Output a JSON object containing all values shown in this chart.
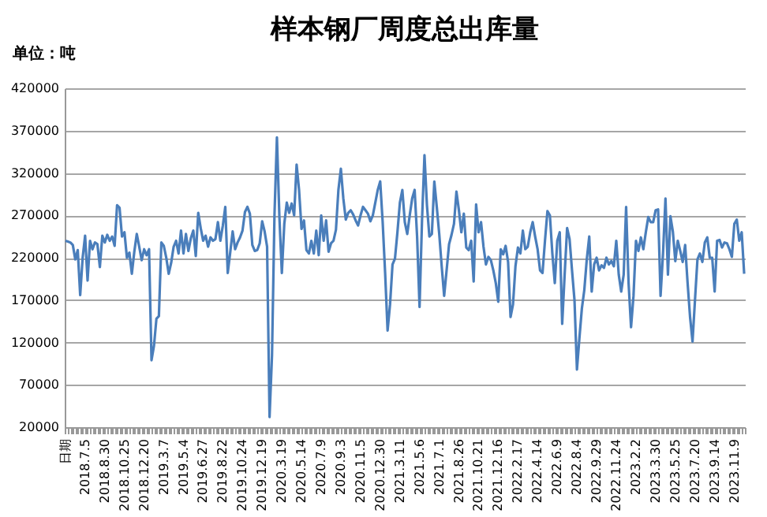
{
  "chart_data": {
    "type": "line",
    "title": "样本钢厂周度总出库量",
    "annotations": [
      "单位：吨"
    ],
    "categories": [
      "日期",
      null,
      null,
      null,
      null,
      null,
      null,
      null,
      "2018.7.5",
      null,
      null,
      null,
      null,
      null,
      null,
      null,
      "2018.8.30",
      null,
      null,
      null,
      null,
      null,
      null,
      null,
      "2018.10.25",
      null,
      null,
      null,
      null,
      null,
      null,
      null,
      "2018.12.20",
      null,
      null,
      null,
      null,
      null,
      null,
      null,
      "2019.3.7",
      null,
      null,
      null,
      null,
      null,
      null,
      null,
      "2019.5.4",
      null,
      null,
      null,
      null,
      null,
      null,
      null,
      "2019.6.27",
      null,
      null,
      null,
      null,
      null,
      null,
      null,
      "2019.8.22",
      null,
      null,
      null,
      null,
      null,
      null,
      null,
      "2019.10.24",
      null,
      null,
      null,
      null,
      null,
      null,
      null,
      "2019.12.19",
      null,
      null,
      null,
      null,
      null,
      null,
      null,
      "2020.3.19",
      null,
      null,
      null,
      null,
      null,
      null,
      null,
      "2020.5.14",
      null,
      null,
      null,
      null,
      null,
      null,
      null,
      "2020.7.9",
      null,
      null,
      null,
      null,
      null,
      null,
      null,
      "2020.9.3",
      null,
      null,
      null,
      null,
      null,
      null,
      null,
      "2020.11.5",
      null,
      null,
      null,
      null,
      null,
      null,
      null,
      "2020.12.30",
      null,
      null,
      null,
      null,
      null,
      null,
      null,
      "2021.3.11",
      null,
      null,
      null,
      null,
      null,
      null,
      null,
      "2021.5.6",
      null,
      null,
      null,
      null,
      null,
      null,
      null,
      "2021.7.1",
      null,
      null,
      null,
      null,
      null,
      null,
      null,
      "2021.8.26",
      null,
      null,
      null,
      null,
      null,
      null,
      null,
      "2021.10.21",
      null,
      null,
      null,
      null,
      null,
      null,
      null,
      "2021.12.16",
      null,
      null,
      null,
      null,
      null,
      null,
      null,
      "2022.2.17",
      null,
      null,
      null,
      null,
      null,
      null,
      null,
      "2022.4.14",
      null,
      null,
      null,
      null,
      null,
      null,
      null,
      "2022.6.9",
      null,
      null,
      null,
      null,
      null,
      null,
      null,
      "2022.8.4",
      null,
      null,
      null,
      null,
      null,
      null,
      null,
      "2022.9.29",
      null,
      null,
      null,
      null,
      null,
      null,
      null,
      "2022.11.24",
      null,
      null,
      null,
      null,
      null,
      null,
      null,
      "2023.2.2",
      null,
      null,
      null,
      null,
      null,
      null,
      null,
      "2023.3.30",
      null,
      null,
      null,
      null,
      null,
      null,
      null,
      "2023.5.25",
      null,
      null,
      null,
      null,
      null,
      null,
      null,
      "2023.7.20",
      null,
      null,
      null,
      null,
      null,
      null,
      null,
      "2023.9.14",
      null,
      null,
      null,
      null,
      null,
      null,
      null,
      "2023.11.9",
      null,
      null,
      null,
      null
    ],
    "values": [
      240000,
      239000,
      238000,
      235000,
      218000,
      229000,
      176000,
      220000,
      246000,
      193000,
      240000,
      230000,
      238000,
      236000,
      209000,
      246000,
      238000,
      247000,
      240000,
      245000,
      234000,
      282000,
      279000,
      245000,
      250000,
      220000,
      226000,
      201000,
      227000,
      248000,
      233000,
      217000,
      230000,
      223000,
      230000,
      99000,
      116000,
      148000,
      151000,
      238000,
      234000,
      220000,
      201000,
      214000,
      233000,
      240000,
      225000,
      252000,
      225000,
      248000,
      228000,
      243000,
      252000,
      222000,
      273000,
      255000,
      240000,
      246000,
      233000,
      244000,
      240000,
      242000,
      262000,
      240000,
      258000,
      280000,
      202000,
      226000,
      251000,
      230000,
      238000,
      244000,
      252000,
      274000,
      280000,
      272000,
      235000,
      228000,
      229000,
      237000,
      263000,
      251000,
      233000,
      32000,
      105000,
      270000,
      362000,
      268000,
      202000,
      260000,
      285000,
      273000,
      284000,
      270000,
      330000,
      300000,
      254000,
      264000,
      229000,
      225000,
      240000,
      225000,
      252000,
      223000,
      270000,
      240000,
      264000,
      227000,
      237000,
      240000,
      253000,
      300000,
      325000,
      290000,
      265000,
      273000,
      276000,
      271000,
      264000,
      258000,
      270000,
      280000,
      276000,
      272000,
      263000,
      270000,
      285000,
      300000,
      310000,
      262000,
      202000,
      134000,
      165000,
      212000,
      219000,
      250000,
      285000,
      300000,
      262000,
      248000,
      270000,
      290000,
      300000,
      245000,
      162000,
      264000,
      341000,
      282000,
      245000,
      248000,
      310000,
      280000,
      248000,
      210000,
      175000,
      205000,
      236000,
      247000,
      260000,
      298000,
      276000,
      250000,
      272000,
      232000,
      229000,
      240000,
      192000,
      283000,
      250000,
      262000,
      233000,
      212000,
      221000,
      217000,
      205000,
      190000,
      168000,
      230000,
      224000,
      234000,
      215000,
      150000,
      165000,
      210000,
      232000,
      225000,
      252000,
      230000,
      233000,
      250000,
      262000,
      245000,
      230000,
      205000,
      202000,
      240000,
      275000,
      270000,
      225000,
      190000,
      240000,
      250000,
      142000,
      200000,
      255000,
      242000,
      205000,
      170000,
      88000,
      125000,
      160000,
      182000,
      218000,
      245000,
      180000,
      212000,
      220000,
      205000,
      211000,
      208000,
      220000,
      212000,
      216000,
      210000,
      240000,
      200000,
      180000,
      200000,
      280000,
      190000,
      138000,
      175000,
      240000,
      228000,
      244000,
      230000,
      250000,
      268000,
      262000,
      262000,
      276000,
      277000,
      175000,
      225000,
      290000,
      200000,
      269000,
      251000,
      216000,
      240000,
      228000,
      215000,
      235000,
      190000,
      150000,
      121000,
      170000,
      218000,
      225000,
      215000,
      238000,
      244000,
      220000,
      220000,
      180000,
      240000,
      241000,
      232000,
      238000,
      237000,
      230000,
      221000,
      260000,
      265000,
      240000,
      250000,
      201000
    ],
    "color": "#4a7ebb",
    "ylim": [
      20000,
      420000
    ],
    "yticks": [
      20000,
      70000,
      120000,
      170000,
      220000,
      270000,
      320000,
      370000,
      420000
    ],
    "grid": "y"
  }
}
